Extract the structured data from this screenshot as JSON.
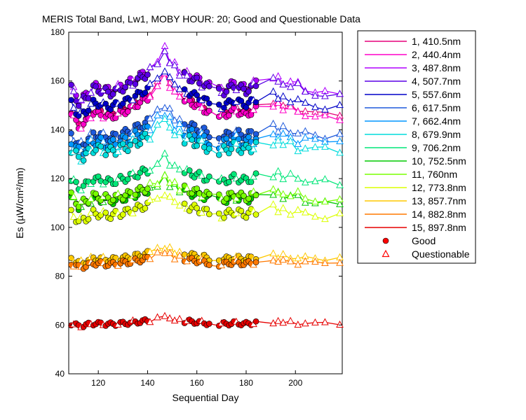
{
  "chart_data": {
    "type": "line",
    "title": "MERIS Total Band,  Lw1, MOBY HOUR: 20;  Good and Questionable Data",
    "xlabel": "Sequential Day",
    "ylabel": "Es (µW/cm²/nm)",
    "xlim": [
      108,
      219
    ],
    "ylim": [
      40,
      180
    ],
    "xticks": [
      120,
      140,
      160,
      180,
      200
    ],
    "yticks": [
      40,
      60,
      80,
      100,
      120,
      140,
      160,
      180
    ],
    "grid": false,
    "legend_position": "right",
    "marker_legend": [
      {
        "label": "Good",
        "marker": "circle"
      },
      {
        "label": "Questionable",
        "marker": "triangle"
      }
    ],
    "series": [
      {
        "name": "1, 410.5nm",
        "color": "#e6007a",
        "base": 150,
        "scale": 1.0,
        "wob": 1.2
      },
      {
        "name": "2, 440.4nm",
        "color": "#ff00c8",
        "base": 149,
        "scale": 1.0,
        "wob": 1.2
      },
      {
        "name": "3, 487.8nm",
        "color": "#b000ff",
        "base": 160,
        "scale": 1.0,
        "wob": 1.5
      },
      {
        "name": "4, 507.7nm",
        "color": "#5a00e6",
        "base": 159,
        "scale": 1.0,
        "wob": 1.5
      },
      {
        "name": "5, 557.6nm",
        "color": "#0000c8",
        "base": 153,
        "scale": 0.9,
        "wob": 1.2
      },
      {
        "name": "6, 617.5nm",
        "color": "#1e5adc",
        "base": 140,
        "scale": 0.8,
        "wob": 1.5
      },
      {
        "name": "7, 662.4nm",
        "color": "#0096ff",
        "base": 137,
        "scale": 0.75,
        "wob": 2.0
      },
      {
        "name": "8, 679.9nm",
        "color": "#00dcdc",
        "base": 134,
        "scale": 0.75,
        "wob": 2.0
      },
      {
        "name": "9, 706.2nm",
        "color": "#00e678",
        "base": 121,
        "scale": 0.6,
        "wob": 1.5
      },
      {
        "name": "10, 752.5nm",
        "color": "#00c800",
        "base": 113,
        "scale": 0.55,
        "wob": 1.5
      },
      {
        "name": "11,   760nm",
        "color": "#78ff00",
        "base": 114,
        "scale": 0.55,
        "wob": 1.5
      },
      {
        "name": "12, 773.8nm",
        "color": "#dcff00",
        "base": 107,
        "scale": 0.55,
        "wob": 1.5
      },
      {
        "name": "13, 857.7nm",
        "color": "#ffc800",
        "base": 88,
        "scale": 0.32,
        "wob": 1.0
      },
      {
        "name": "14, 882.8nm",
        "color": "#ff7800",
        "base": 86,
        "scale": 0.3,
        "wob": 1.0
      },
      {
        "name": "15, 897.8nm",
        "color": "#e60000",
        "base": 61,
        "scale": 0.18,
        "wob": 0.8
      }
    ]
  }
}
